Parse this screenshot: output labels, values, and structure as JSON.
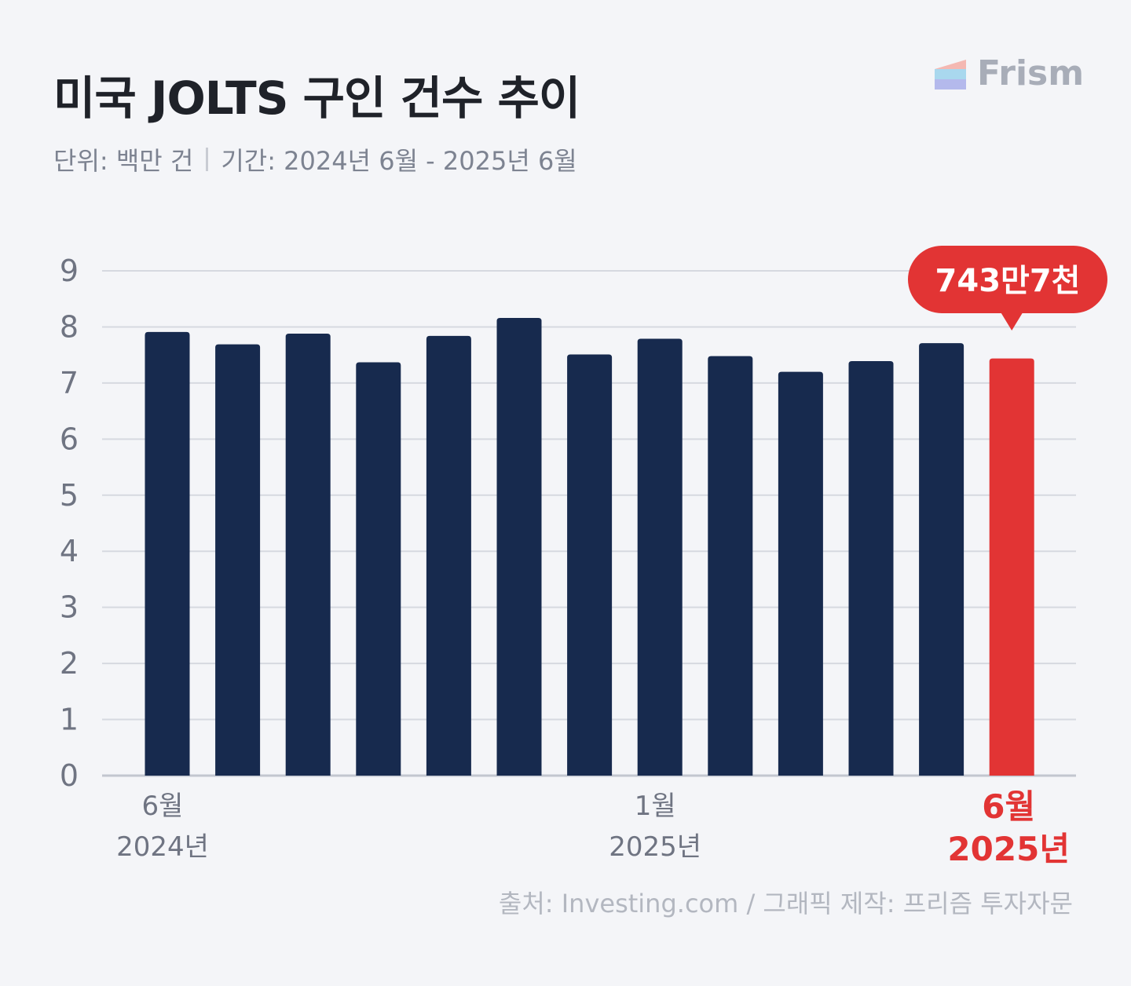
{
  "title": "미국 JOLTS 구인 건수 추이",
  "subtitle": {
    "unit": "단위: 백만 건",
    "period": "기간: 2024년 6월 - 2025년 6월"
  },
  "logo": {
    "text": "Frism",
    "icon": "frism-logo-icon"
  },
  "source": "출처: Investing.com  / 그래픽 제작: 프리즘 투자자문",
  "colors": {
    "bar": "#172a4e",
    "highlight": "#e23434",
    "grid": "#d6d9e0",
    "axis_text": "#6f7482"
  },
  "chart_data": {
    "type": "bar",
    "unit": "백만 건",
    "categories": [
      "2024-06",
      "2024-07",
      "2024-08",
      "2024-09",
      "2024-10",
      "2024-11",
      "2024-12",
      "2025-01",
      "2025-02",
      "2025-03",
      "2025-04",
      "2025-05",
      "2025-06"
    ],
    "values": [
      7.91,
      7.69,
      7.88,
      7.37,
      7.84,
      8.16,
      7.51,
      7.79,
      7.48,
      7.2,
      7.39,
      7.71,
      7.437
    ],
    "ylim": [
      0,
      9
    ],
    "yticks": [
      0,
      1,
      2,
      3,
      4,
      5,
      6,
      7,
      8,
      9
    ],
    "grid": true,
    "highlight_index": 12,
    "callout": "743만7천",
    "x_labels": [
      {
        "index": 0,
        "month": "6월",
        "year": "2024년",
        "highlight": false
      },
      {
        "index": 7,
        "month": "1월",
        "year": "2025년",
        "highlight": false
      },
      {
        "index": 12,
        "month": "6월",
        "year": "2025년",
        "highlight": true
      }
    ]
  }
}
